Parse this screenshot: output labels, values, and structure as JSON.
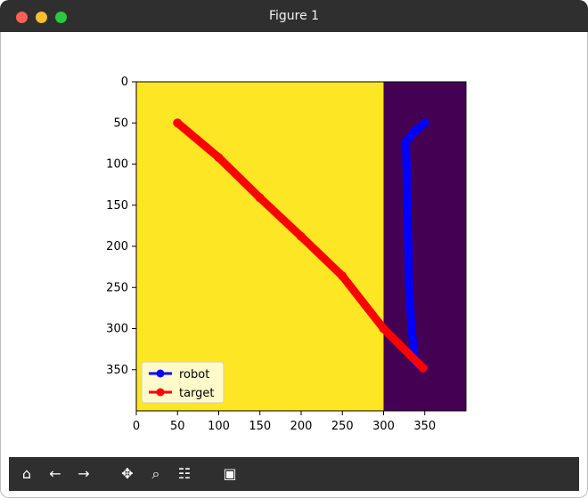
{
  "window": {
    "title": "Figure 1"
  },
  "toolbar": {
    "icons": [
      "home-icon",
      "back-icon",
      "forward-icon",
      "pan-icon",
      "zoom-icon",
      "configure-icon",
      "save-icon"
    ]
  },
  "chart_data": {
    "type": "line",
    "title": "",
    "xlabel": "",
    "ylabel": "",
    "xlim": [
      0,
      400
    ],
    "ylim": [
      400,
      0
    ],
    "xticks": [
      "0",
      "50",
      "100",
      "150",
      "200",
      "250",
      "300",
      "350"
    ],
    "yticks": [
      "0",
      "50",
      "100",
      "150",
      "200",
      "250",
      "300",
      "350"
    ],
    "image": {
      "type": "imshow",
      "regions": [
        {
          "x_from": 0,
          "x_to": 300,
          "color": "#fde725"
        },
        {
          "x_from": 300,
          "x_to": 400,
          "color": "#440154"
        }
      ]
    },
    "series": [
      {
        "name": "robot",
        "color": "#0000ff",
        "points": [
          [
            350,
            50
          ],
          [
            338,
            60
          ],
          [
            327,
            73
          ],
          [
            328,
            100
          ],
          [
            329,
            150
          ],
          [
            330,
            200
          ],
          [
            331,
            250
          ],
          [
            334,
            300
          ],
          [
            338,
            340
          ],
          [
            348,
            348
          ]
        ]
      },
      {
        "name": "target",
        "color": "#ff0000",
        "points": [
          [
            50,
            50
          ],
          [
            100,
            92
          ],
          [
            150,
            141
          ],
          [
            200,
            188
          ],
          [
            250,
            236
          ],
          [
            300,
            300
          ],
          [
            348,
            348
          ]
        ]
      }
    ],
    "legend": {
      "placement": "lower-left",
      "entries": [
        "robot",
        "target"
      ]
    },
    "grid": false
  }
}
